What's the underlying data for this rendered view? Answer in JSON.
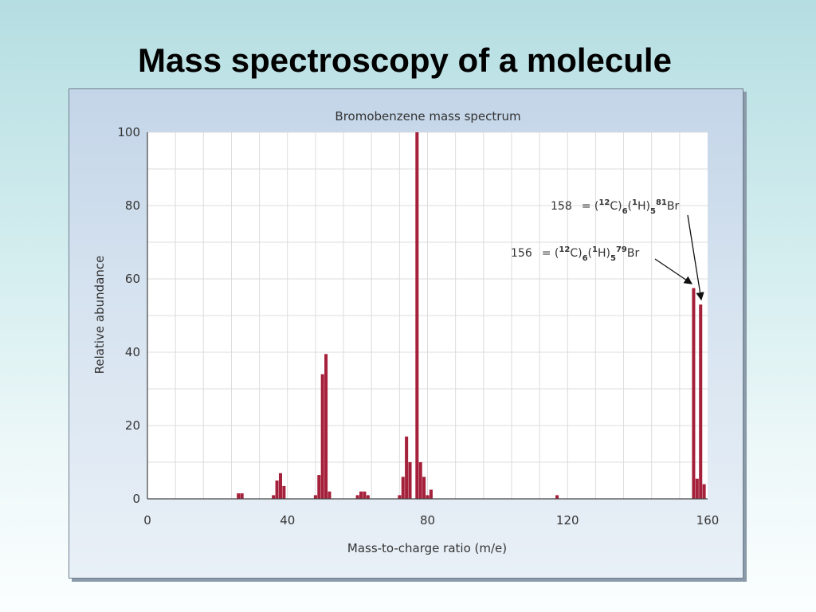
{
  "slide": {
    "title": "Mass spectroscopy of a molecule"
  },
  "chart_data": {
    "type": "bar",
    "title": "Bromobenzene mass spectrum",
    "xlabel": "Mass-to-charge ratio (m/e)",
    "ylabel": "Relative abundance",
    "xlim": [
      0,
      160
    ],
    "ylim": [
      0,
      100
    ],
    "xticks": [
      0,
      40,
      80,
      120,
      160
    ],
    "yticks": [
      0,
      20,
      40,
      60,
      80,
      100
    ],
    "grid": true,
    "bar_color": "#a5203a",
    "points": [
      {
        "x": 26,
        "y": 1.5
      },
      {
        "x": 27,
        "y": 1.5
      },
      {
        "x": 36,
        "y": 1
      },
      {
        "x": 37,
        "y": 5
      },
      {
        "x": 38,
        "y": 7
      },
      {
        "x": 39,
        "y": 3.5
      },
      {
        "x": 48,
        "y": 1
      },
      {
        "x": 49,
        "y": 6.5
      },
      {
        "x": 50,
        "y": 34
      },
      {
        "x": 51,
        "y": 39.5
      },
      {
        "x": 52,
        "y": 2
      },
      {
        "x": 60,
        "y": 1
      },
      {
        "x": 61,
        "y": 2
      },
      {
        "x": 62,
        "y": 2
      },
      {
        "x": 63,
        "y": 1
      },
      {
        "x": 72,
        "y": 1
      },
      {
        "x": 73,
        "y": 6
      },
      {
        "x": 74,
        "y": 17
      },
      {
        "x": 75,
        "y": 10
      },
      {
        "x": 77,
        "y": 100
      },
      {
        "x": 78,
        "y": 10
      },
      {
        "x": 79,
        "y": 6
      },
      {
        "x": 80,
        "y": 1
      },
      {
        "x": 81,
        "y": 2.5
      },
      {
        "x": 117,
        "y": 1
      },
      {
        "x": 156,
        "y": 57.5
      },
      {
        "x": 157,
        "y": 5.5
      },
      {
        "x": 158,
        "y": 53
      },
      {
        "x": 159,
        "y": 4
      }
    ],
    "annotations": [
      {
        "mass": "158",
        "text": "= (",
        "c_mass": "12",
        "c": "C)",
        "c_sub": "6",
        "h_open": "(",
        "h_mass": "1",
        "h": "H)",
        "h_sub": "5",
        "br_mass": "81",
        "br": "Br",
        "points_to": 158
      },
      {
        "mass": "156",
        "text": "= (",
        "c_mass": "12",
        "c": "C)",
        "c_sub": "6",
        "h_open": "(",
        "h_mass": "1",
        "h": "H)",
        "h_sub": "5",
        "br_mass": "79",
        "br": "Br",
        "points_to": 156
      }
    ]
  }
}
